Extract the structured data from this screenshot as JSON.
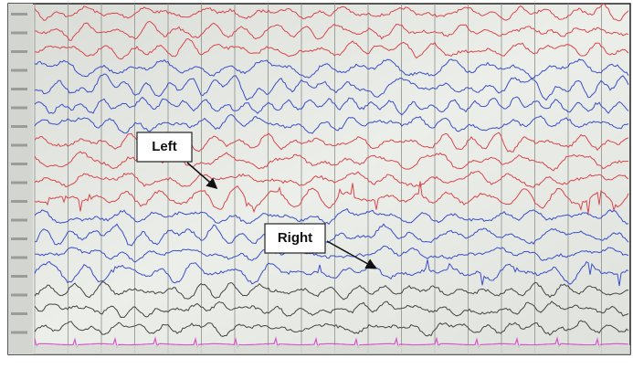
{
  "annotations": {
    "left": "Left",
    "right": "Right"
  }
}
